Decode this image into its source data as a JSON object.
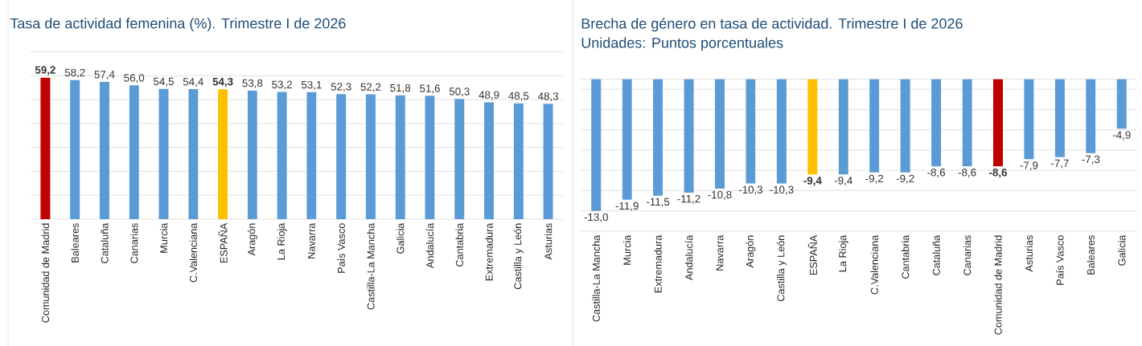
{
  "chart_data": [
    {
      "type": "bar",
      "title": "Tasa de actividad femenina (%). Trimestre I de 2026",
      "categories": [
        "Comunidad de Madrid",
        "Baleares",
        "Cataluña",
        "Canarias",
        "Murcia",
        "C.Valenciana",
        "ESPAÑA",
        "Aragón",
        "La Rioja",
        "Navarra",
        "País Vasco",
        "Castilla-La Mancha",
        "Galicia",
        "Andalucía",
        "Cantabria",
        "Extremadura",
        "Castilla y León",
        "Asturias"
      ],
      "values": [
        59.2,
        58.2,
        57.4,
        56.0,
        54.5,
        54.4,
        54.3,
        53.8,
        53.2,
        53.1,
        52.3,
        52.2,
        51.8,
        51.6,
        50.3,
        48.9,
        48.5,
        48.3
      ],
      "value_labels": [
        "**59,2**",
        "58,2",
        "57,4",
        "56,0",
        "54,5",
        "54,4",
        "**54,3**",
        "53,8",
        "53,2",
        "53,1",
        "52,3",
        "52,2",
        "51,8",
        "51,6",
        "50,3",
        "48,9",
        "48,5",
        "48,3"
      ],
      "colors": [
        "#c00000",
        "#5b9bd5",
        "#5b9bd5",
        "#5b9bd5",
        "#5b9bd5",
        "#5b9bd5",
        "#ffc000",
        "#5b9bd5",
        "#5b9bd5",
        "#5b9bd5",
        "#5b9bd5",
        "#5b9bd5",
        "#5b9bd5",
        "#5b9bd5",
        "#5b9bd5",
        "#5b9bd5",
        "#5b9bd5",
        "#5b9bd5"
      ],
      "ylim": [
        0,
        70
      ],
      "yticks": [
        {
          "value": 0,
          "label": null
        },
        {
          "value": 10,
          "label": null
        },
        {
          "value": 20,
          "label": null
        },
        {
          "value": 30,
          "label": null
        },
        {
          "value": 40,
          "label": null
        },
        {
          "value": 50,
          "label": null
        },
        {
          "value": 60,
          "label": null
        },
        {
          "value": 70,
          "label": null
        }
      ],
      "grid": "y",
      "tick_labels": "x"
    },
    {
      "type": "bar",
      "title": "Brecha de género en tasa de actividad. Trimestre I de 2026",
      "subtitle": "Unidades: Puntos porcentuales",
      "categories": [
        "Castilla-La Mancha",
        "Murcia",
        "Extremadura",
        "Andalucía",
        "Navarra",
        "Aragón",
        "Castilla y León",
        "ESPAÑA",
        "La Rioja",
        "C.Valenciana",
        "Cantabria",
        "Cataluña",
        "Canarias",
        "Comunidad de Madrid",
        "Asturias",
        "País Vasco",
        "Baleares",
        "Galicia"
      ],
      "values": [
        -13.0,
        -11.9,
        -11.5,
        -11.2,
        -10.8,
        -10.3,
        -10.3,
        -9.4,
        -9.4,
        -9.2,
        -9.2,
        -8.6,
        -8.6,
        -8.6,
        -7.9,
        -7.7,
        -7.3,
        -4.9
      ],
      "value_labels": [
        "-13,0",
        "-11,9",
        "-11,5",
        "-11,2",
        "-10,8",
        "-10,3",
        "-10,3",
        "**-9,4**",
        "-9,4",
        "-9,2",
        "-9,2",
        "-8,6",
        "-8,6",
        "**-8,6**",
        "-7,9",
        "-7,7",
        "-7,3",
        "-4,9"
      ],
      "colors": [
        "#5b9bd5",
        "#5b9bd5",
        "#5b9bd5",
        "#5b9bd5",
        "#5b9bd5",
        "#5b9bd5",
        "#5b9bd5",
        "#ffc000",
        "#5b9bd5",
        "#5b9bd5",
        "#5b9bd5",
        "#5b9bd5",
        "#5b9bd5",
        "#c00000",
        "#5b9bd5",
        "#5b9bd5",
        "#5b9bd5",
        "#5b9bd5"
      ],
      "ylim": [
        -15,
        0
      ],
      "yticks": [
        {
          "value": -15,
          "label": null
        },
        {
          "value": -13,
          "label": null
        },
        {
          "value": -11,
          "label": null
        },
        {
          "value": -9,
          "label": null
        },
        {
          "value": -7,
          "label": null
        },
        {
          "value": -5,
          "label": null
        },
        {
          "value": -3,
          "label": null
        },
        {
          "value": -1,
          "label": null
        },
        {
          "value": 0,
          "label": null
        }
      ],
      "grid": "y",
      "tick_labels": "x"
    }
  ]
}
